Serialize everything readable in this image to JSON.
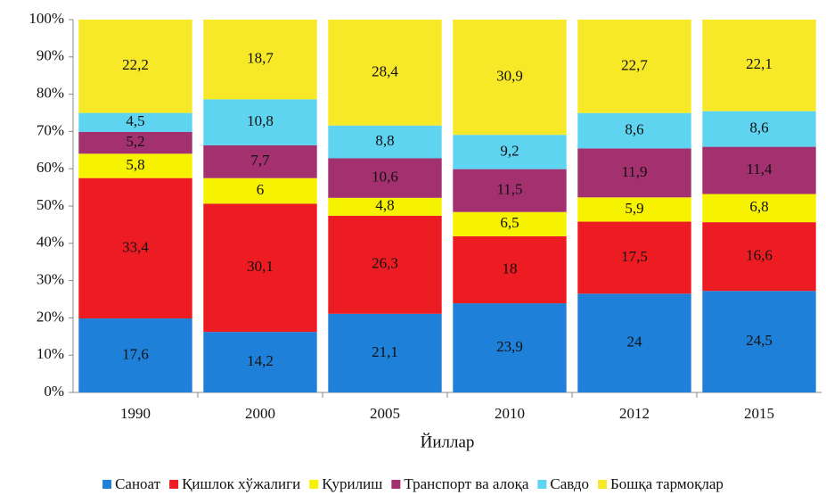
{
  "chart_data": {
    "type": "bar",
    "stacked": "percent",
    "x_label": "Йиллар",
    "categories": [
      "1990",
      "2000",
      "2005",
      "2010",
      "2012",
      "2015"
    ],
    "series": [
      {
        "name": "Саноат",
        "color": "#1e80d8",
        "values": [
          17.6,
          14.2,
          21.1,
          23.9,
          24,
          24.5
        ],
        "value_labels": [
          "17,6",
          "14,2",
          "21,1",
          "23,9",
          "24",
          "24,5"
        ]
      },
      {
        "name": "Қишлок хўжалиги",
        "color": "#ec1c22",
        "values": [
          33.4,
          30.1,
          26.3,
          18,
          17.5,
          16.6
        ],
        "value_labels": [
          "33,4",
          "30,1",
          "26,3",
          "18",
          "17,5",
          "16,6"
        ]
      },
      {
        "name": "Қурилиш",
        "color": "#f7f200",
        "values": [
          5.8,
          6,
          4.8,
          6.5,
          5.9,
          6.8
        ],
        "value_labels": [
          "5,8",
          "6",
          "4,8",
          "6,5",
          "5,9",
          "6,8"
        ]
      },
      {
        "name": "Транспорт ва алоқа",
        "color": "#a3306f",
        "values": [
          5.2,
          7.7,
          10.6,
          11.5,
          11.9,
          11.4
        ],
        "value_labels": [
          "5,2",
          "7,7",
          "10,6",
          "11,5",
          "11,9",
          "11,4"
        ]
      },
      {
        "name": "Савдо",
        "color": "#5ed4f0",
        "values": [
          4.5,
          10.8,
          8.8,
          9.2,
          8.6,
          8.6
        ],
        "value_labels": [
          "4,5",
          "10,8",
          "8,8",
          "9,2",
          "8,6",
          "8,6"
        ]
      },
      {
        "name": "Бошқа тармоқлар",
        "color": "#f7e928",
        "values": [
          22.2,
          18.7,
          28.4,
          30.9,
          22.7,
          22.1
        ],
        "value_labels": [
          "22,2",
          "18,7",
          "28,4",
          "30,9",
          "22,7",
          "22,1"
        ]
      }
    ],
    "ylim": [
      0,
      100
    ],
    "yticks": [
      {
        "value": 0,
        "label": "0%"
      },
      {
        "value": 10,
        "label": "10%"
      },
      {
        "value": 20,
        "label": "20%"
      },
      {
        "value": 30,
        "label": "30%"
      },
      {
        "value": 40,
        "label": "40%"
      },
      {
        "value": 50,
        "label": "50%"
      },
      {
        "value": 60,
        "label": "60%"
      },
      {
        "value": 70,
        "label": "70%"
      },
      {
        "value": 80,
        "label": "80%"
      },
      {
        "value": 90,
        "label": "90%"
      },
      {
        "value": 100,
        "label": "100%"
      }
    ],
    "legend": "bottom"
  }
}
